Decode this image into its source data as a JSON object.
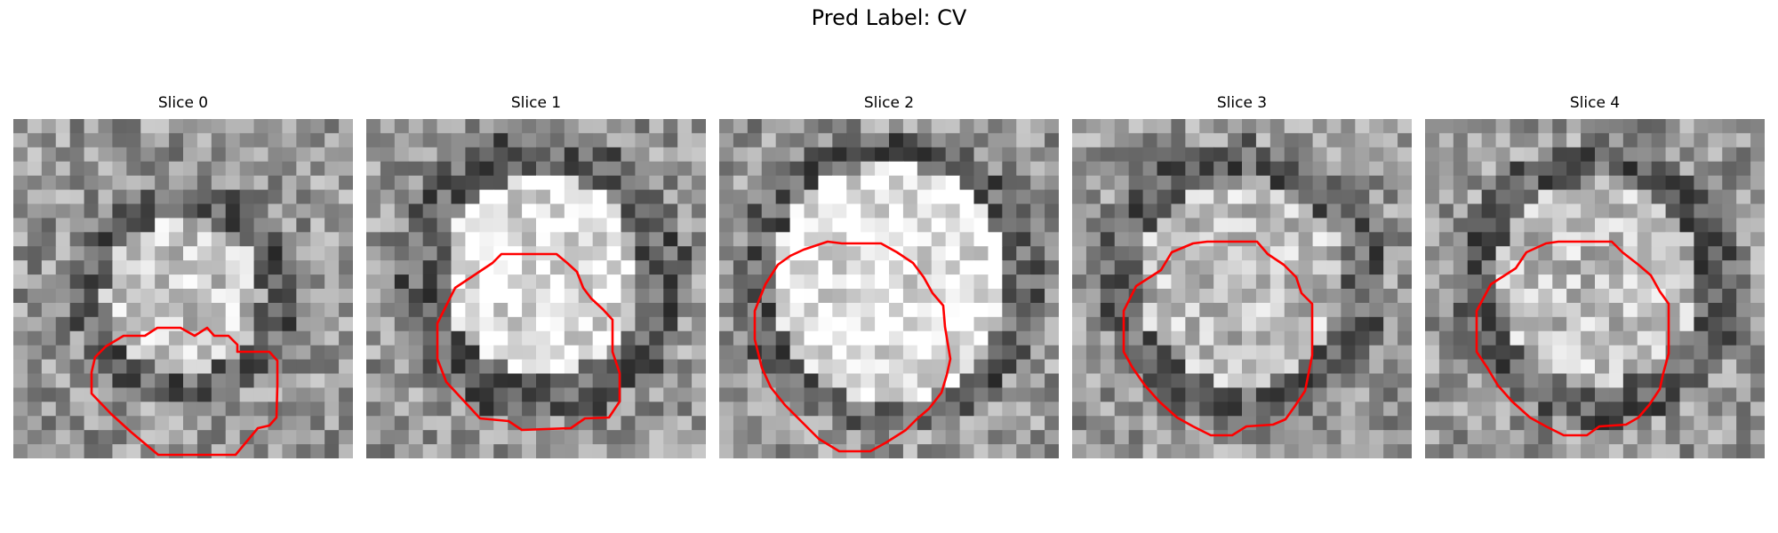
{
  "figure": {
    "title": "Pred Label: CV",
    "contour_color": "#ff0000",
    "panels": [
      {
        "title": "Slice 0"
      },
      {
        "title": "Slice 1"
      },
      {
        "title": "Slice 2"
      },
      {
        "title": "Slice 3"
      },
      {
        "title": "Slice 4"
      }
    ]
  }
}
